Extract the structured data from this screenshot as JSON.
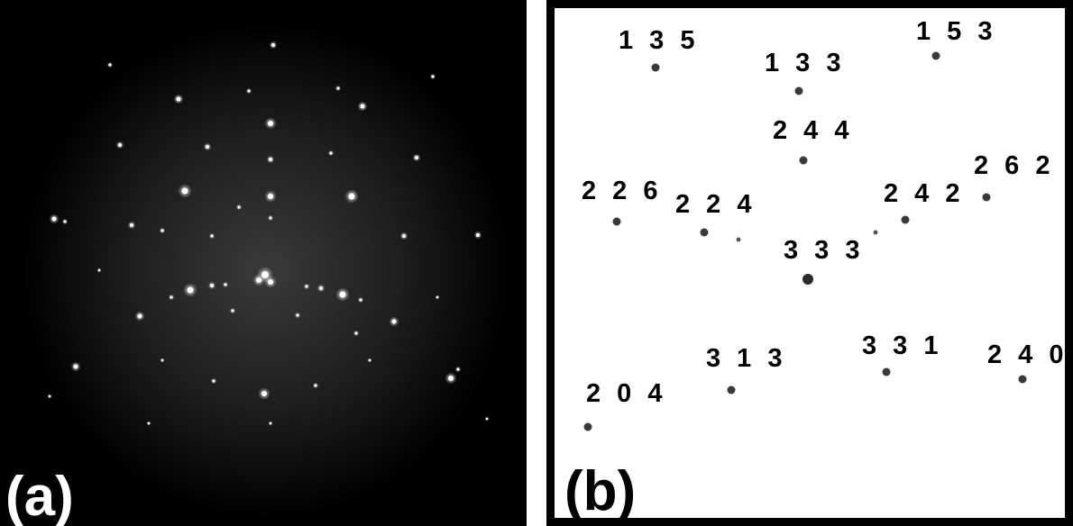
{
  "panel_a": {
    "label": "(a)",
    "colors": {
      "background": "#000000",
      "glow": "#3a3a3a",
      "spot": "#ffffff",
      "label": "#ffffff"
    }
  },
  "panel_b": {
    "label": "(b)",
    "colors": {
      "background": "#ffffff",
      "border": "#000000",
      "spot": "#3a3a3a",
      "label": "#000000"
    },
    "reflections": [
      {
        "index": "1 3 5"
      },
      {
        "index": "1 3 3"
      },
      {
        "index": "1 5 3"
      },
      {
        "index": "2 4 4"
      },
      {
        "index": "2 2 6"
      },
      {
        "index": "2 2 4"
      },
      {
        "index": "2 4 2"
      },
      {
        "index": "2 6 2"
      },
      {
        "index": "3 3 3"
      },
      {
        "index": "3 1 3"
      },
      {
        "index": "3 3 1"
      },
      {
        "index": "2 4 0"
      },
      {
        "index": "2 0 4"
      }
    ]
  }
}
